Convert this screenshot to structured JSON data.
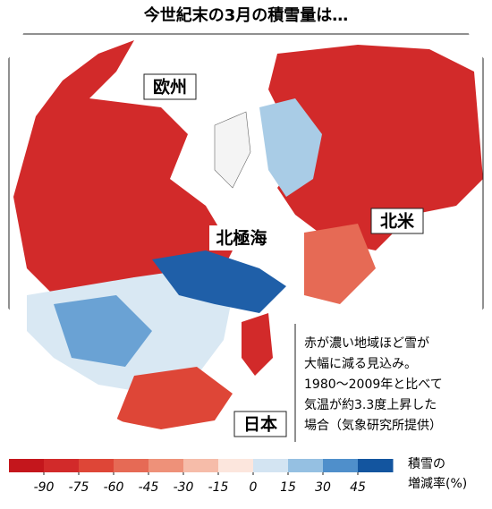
{
  "header": {
    "title": "今世紀末の3月の積雪量は…"
  },
  "map": {
    "labels": {
      "europe": "欧州",
      "north_america": "北米",
      "arctic": "北極海",
      "japan": "日本"
    }
  },
  "note": {
    "lines": [
      "赤が濃い地域ほど雪が",
      "大幅に減る見込み。",
      "1980～2009年と比べて",
      "気温が約3.3度上昇した",
      "場合（気象研究所提供）"
    ]
  },
  "colorbar": {
    "title_lines": [
      "積雪の",
      "増減率(%)"
    ],
    "ticks": [
      -90,
      -75,
      -60,
      -45,
      -30,
      -15,
      0,
      15,
      30,
      45
    ],
    "colors": [
      "#c4161c",
      "#d22a2a",
      "#de4637",
      "#e66a55",
      "#ee9179",
      "#f6bca9",
      "#fce6dd",
      "#d3e4f2",
      "#95c0e2",
      "#4f8fcb",
      "#13559f"
    ]
  }
}
